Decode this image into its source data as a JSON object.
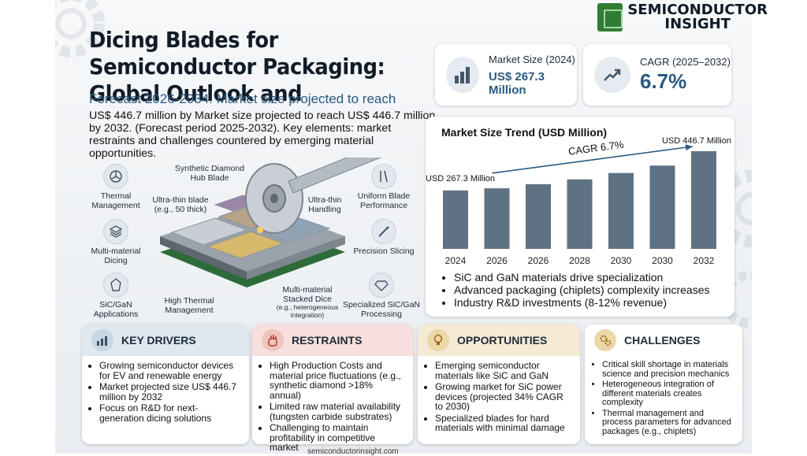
{
  "header": {
    "title": "Dicing Blades for Semiconductor Packaging: Global Outlook and",
    "subtitle": "Forecast 2026-2034. Market size projected to reach",
    "description": "US$ 446.7 million by Market size projected to reach US$ 446.7 million by 2032. (Forecast period 2025-2032). Key elements: market restraints and challenges countered by emerging material opportunities."
  },
  "logo": {
    "line1": "SEMICONDUCTOR",
    "line2": "INSIGHT"
  },
  "stats": {
    "market_size": {
      "label": "Market Size (2024)",
      "value": "US$ 267.3 Million",
      "icon": "bar-chart-icon"
    },
    "cagr": {
      "label": "CAGR (2025–2032)",
      "value": "6.7%",
      "icon": "trend-up-icon"
    }
  },
  "chart_data": {
    "type": "bar",
    "title": "Market Size Trend (USD Million)",
    "categories": [
      "2024",
      "2026",
      "2026",
      "2028",
      "2030",
      "2030",
      "2032"
    ],
    "values": [
      267.3,
      277,
      296,
      318,
      347,
      381,
      446.7
    ],
    "start_label": "USD 267.3 Million",
    "end_label": "USD 446.7 Million",
    "trend_label": "CAGR 6.7%",
    "bar_color": "#5f7283"
  },
  "chart_bullets": [
    "SiC and GaN materials drive specialization",
    "Advanced packaging (chiplets) complexity increases",
    "Industry R&D investments (8-12% revenue)"
  ],
  "illustration": {
    "left_features": [
      {
        "label": "Thermal Management",
        "icon": "fan-icon"
      },
      {
        "label": "Multi-material Dicing",
        "icon": "layers-icon"
      },
      {
        "label": "SiC/GaN Applications",
        "icon": "crystal-icon"
      }
    ],
    "right_features": [
      {
        "label": "Uniform Blade Performance",
        "icon": "blade-icon"
      },
      {
        "label": "Precision Slicing",
        "icon": "scalpel-icon"
      },
      {
        "label": "Specialized SiC/GaN Processing",
        "icon": "gem-icon"
      }
    ],
    "callouts": {
      "hub_blade": "Synthetic Diamond Hub Blade",
      "ultra_thin_blade": "Ultra-thin blade (e.g., 50 thick)",
      "ultra_thin_handling": "Ultra-thin Handling",
      "high_thermal": "High Thermal Management",
      "stacked_dice": "Multi-material Stacked Dice",
      "stacked_dice_note": "(e.g., heterogeneous integration)"
    }
  },
  "cards": [
    {
      "title": "KEY DRIVERS",
      "icon": "growth-chart-icon",
      "head_color": "#dfe7ef",
      "icon_color": "#c9d6e3",
      "items": [
        "Growing semiconductor devices for EV and renewable energy",
        "Market projected size US$ 446.7 million by 2032",
        "Focus on R&D for next-generation dicing solutions"
      ]
    },
    {
      "title": "RESTRAINTS",
      "icon": "hand-stop-icon",
      "head_color": "#f6dfdc",
      "icon_color": "#f0c4be",
      "items": [
        "High Production Costs and material price fluctuations (e.g., synthetic diamond >18% annual)",
        "Limited raw material availability (tungsten carbide substrates)",
        "Challenging to maintain profitability in competitive market"
      ]
    },
    {
      "title": "OPPORTUNITIES",
      "icon": "lightbulb-icon",
      "head_color": "#f5ead4",
      "icon_color": "#ecd7a8",
      "items": [
        "Emerging semiconductor materials like SiC and GaN",
        "Growing market for SiC power devices (projected 34% CAGR to 2030)",
        "Specialized blades for hard materials with minimal damage"
      ]
    },
    {
      "title": "CHALLENGES",
      "icon": "gears-icon",
      "head_color": "#ffffff",
      "icon_color": "#ecd7a8",
      "items": [
        "Critical skill shortage in materials science and precision mechanics",
        "Heterogeneous integration of different materials creates complexity",
        "Thermal management and process parameters for advanced packages (e.g., chiplets)"
      ]
    }
  ],
  "footer": {
    "text": "semiconductorinsight.com"
  }
}
